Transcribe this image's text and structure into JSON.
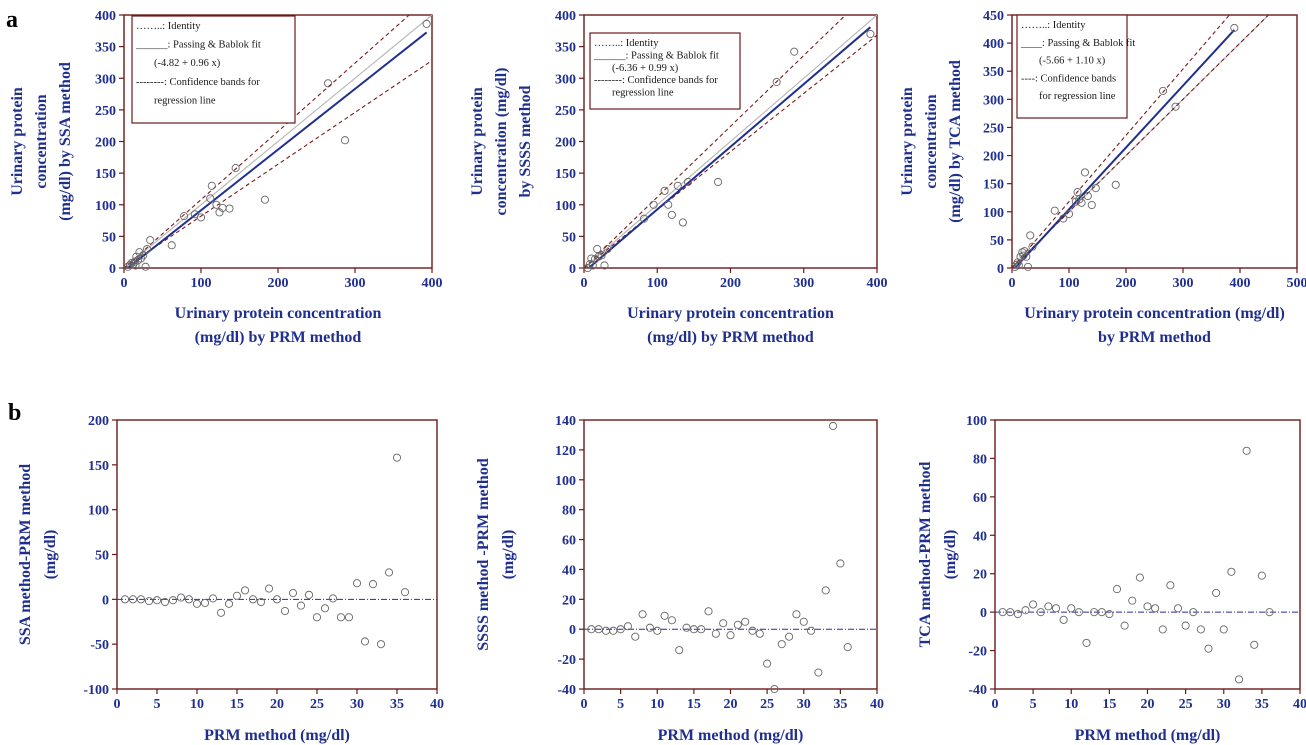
{
  "figure": {
    "panel_a_label": "a",
    "panel_b_label": "b"
  },
  "colors": {
    "axis_frame": "#6b1a1a",
    "tick_text": "#1f2f8f",
    "fit_line": "#1f2f8f",
    "identity_line": "#b5b5b5",
    "confidence_band": "#7a1a1a",
    "markers": "#666666",
    "zero_line": "#2a2a9a"
  },
  "chart_data": [
    {
      "id": "a1",
      "type": "scatter",
      "ylabel_lines": [
        "Urinary protein",
        "concentration",
        "(mg/dl) by SSA method"
      ],
      "xlabel_lines": [
        "Urinary protein concentration",
        "(mg/dl) by PRM method"
      ],
      "xlim": [
        0,
        400
      ],
      "ylim": [
        0,
        400
      ],
      "xticks": [
        "0",
        "100",
        "200",
        "300",
        "400"
      ],
      "yticks": [
        "0",
        "50",
        "100",
        "150",
        "200",
        "250",
        "300",
        "350",
        "400"
      ],
      "legend": [
        "……..: Identity",
        "______: Passing & Bablok fit",
        "(-4.82 + 0.96 x)",
        "--------: Confidence bands for",
        "regression line"
      ],
      "legend_position": "top-left",
      "fit": {
        "intercept": -4.82,
        "slope": 0.96
      },
      "identity": true,
      "bands": {
        "lower_slope": 0.82,
        "upper_slope": 1.08
      },
      "points": [
        [
          5,
          2
        ],
        [
          8,
          5
        ],
        [
          10,
          8
        ],
        [
          12,
          6
        ],
        [
          14,
          10
        ],
        [
          15,
          4
        ],
        [
          16,
          18
        ],
        [
          18,
          12
        ],
        [
          20,
          25
        ],
        [
          22,
          15
        ],
        [
          25,
          20
        ],
        [
          28,
          2
        ],
        [
          30,
          30
        ],
        [
          34,
          44
        ],
        [
          62,
          36
        ],
        [
          78,
          82
        ],
        [
          92,
          85
        ],
        [
          100,
          80
        ],
        [
          112,
          110
        ],
        [
          114,
          130
        ],
        [
          120,
          100
        ],
        [
          124,
          88
        ],
        [
          128,
          95
        ],
        [
          137,
          94
        ],
        [
          145,
          158
        ],
        [
          183,
          108
        ],
        [
          265,
          292
        ],
        [
          287,
          202
        ],
        [
          393,
          386
        ]
      ]
    },
    {
      "id": "a2",
      "type": "scatter",
      "ylabel_lines": [
        "Urinary protein",
        "concentration (mg/dl)",
        "by SSSS method"
      ],
      "xlabel_lines": [
        "Urinary protein concentration",
        "(mg/dl)  by PRM method"
      ],
      "xlim": [
        0,
        400
      ],
      "ylim": [
        0,
        400
      ],
      "xticks": [
        "0",
        "100",
        "200",
        "300",
        "400"
      ],
      "yticks": [
        "0",
        "50",
        "100",
        "150",
        "200",
        "250",
        "300",
        "350",
        "400"
      ],
      "legend": [
        "……..: Identity",
        "______: Passing & Bablok fit",
        "(-6.36 + 0.99 x)",
        "--------: Confidence bands for",
        "regression line"
      ],
      "legend_position": "top-left",
      "fit": {
        "intercept": -6.36,
        "slope": 0.99
      },
      "identity": true,
      "bands": {
        "lower_slope": 0.92,
        "upper_slope": 1.12
      },
      "points": [
        [
          5,
          0
        ],
        [
          8,
          6
        ],
        [
          10,
          15
        ],
        [
          12,
          4
        ],
        [
          15,
          14
        ],
        [
          18,
          30
        ],
        [
          20,
          18
        ],
        [
          24,
          20
        ],
        [
          28,
          4
        ],
        [
          32,
          30
        ],
        [
          82,
          78
        ],
        [
          95,
          100
        ],
        [
          110,
          122
        ],
        [
          115,
          100
        ],
        [
          120,
          84
        ],
        [
          128,
          130
        ],
        [
          135,
          72
        ],
        [
          142,
          136
        ],
        [
          183,
          136
        ],
        [
          263,
          294
        ],
        [
          287,
          342
        ],
        [
          391,
          370
        ]
      ]
    },
    {
      "id": "a3",
      "type": "scatter",
      "ylabel_lines": [
        "Urinary protein",
        "concentration",
        "(mg/dl) by TCA method"
      ],
      "xlabel_lines": [
        "Urinary protein concentration (mg/dl)",
        "by PRM method"
      ],
      "xlim": [
        0,
        500
      ],
      "ylim": [
        0,
        450
      ],
      "xticks": [
        "0",
        "100",
        "200",
        "300",
        "400",
        "500"
      ],
      "yticks": [
        "0",
        "50",
        "100",
        "150",
        "200",
        "250",
        "300",
        "350",
        "400",
        "450"
      ],
      "legend": [
        "……..: Identity",
        "____: Passing & Bablok fit",
        "(-5.66 + 1.10 x)",
        "----: Confidence bands",
        "for regression line"
      ],
      "legend_position": "top-left",
      "fit": {
        "intercept": -5.66,
        "slope": 1.1
      },
      "identity": true,
      "bands": {
        "lower_slope": 1.0,
        "upper_slope": 1.18
      },
      "points": [
        [
          5,
          2
        ],
        [
          8,
          6
        ],
        [
          10,
          10
        ],
        [
          12,
          5
        ],
        [
          15,
          20
        ],
        [
          18,
          28
        ],
        [
          20,
          22
        ],
        [
          22,
          30
        ],
        [
          25,
          20
        ],
        [
          28,
          2
        ],
        [
          32,
          58
        ],
        [
          36,
          38
        ],
        [
          75,
          102
        ],
        [
          90,
          88
        ],
        [
          100,
          96
        ],
        [
          112,
          118
        ],
        [
          115,
          135
        ],
        [
          118,
          122
        ],
        [
          122,
          116
        ],
        [
          128,
          170
        ],
        [
          133,
          128
        ],
        [
          140,
          112
        ],
        [
          147,
          142
        ],
        [
          182,
          148
        ],
        [
          265,
          315
        ],
        [
          287,
          287
        ],
        [
          390,
          427
        ]
      ]
    },
    {
      "id": "b1",
      "type": "scatter",
      "ylabel_lines": [
        "SSA method-PRM method",
        "(mg/dl)"
      ],
      "xlabel_lines": [
        "PRM method (mg/dl)"
      ],
      "xlim": [
        0,
        40
      ],
      "ylim": [
        -100,
        200
      ],
      "xticks": [
        "0",
        "5",
        "10",
        "15",
        "20",
        "25",
        "30",
        "35",
        "40"
      ],
      "yticks": [
        "-100",
        "-50",
        "0",
        "50",
        "100",
        "150",
        "200"
      ],
      "zero_line": true,
      "points": [
        [
          1,
          0
        ],
        [
          2,
          0
        ],
        [
          3,
          0
        ],
        [
          4,
          -2
        ],
        [
          5,
          -1
        ],
        [
          6,
          -3
        ],
        [
          7,
          -1
        ],
        [
          8,
          2
        ],
        [
          9,
          0
        ],
        [
          10,
          -5
        ],
        [
          11,
          -4
        ],
        [
          12,
          1
        ],
        [
          13,
          -15
        ],
        [
          14,
          -5
        ],
        [
          15,
          4
        ],
        [
          16,
          10
        ],
        [
          17,
          0
        ],
        [
          18,
          -3
        ],
        [
          19,
          12
        ],
        [
          20,
          0
        ],
        [
          21,
          -13
        ],
        [
          22,
          7
        ],
        [
          23,
          -7
        ],
        [
          24,
          5
        ],
        [
          25,
          -20
        ],
        [
          26,
          -10
        ],
        [
          27,
          1
        ],
        [
          28,
          -20
        ],
        [
          29,
          -20
        ],
        [
          30,
          18
        ],
        [
          31,
          -47
        ],
        [
          32,
          17
        ],
        [
          33,
          -50
        ],
        [
          34,
          30
        ],
        [
          35,
          158
        ],
        [
          36,
          8
        ]
      ]
    },
    {
      "id": "b2",
      "type": "scatter",
      "ylabel_lines": [
        "SSSS method -PRM method",
        "(mg/dl)"
      ],
      "xlabel_lines": [
        "PRM method (mg/dl)"
      ],
      "xlim": [
        0,
        40
      ],
      "ylim": [
        -40,
        140
      ],
      "xticks": [
        "0",
        "5",
        "10",
        "15",
        "20",
        "25",
        "30",
        "35",
        "40"
      ],
      "yticks": [
        "-40",
        "-20",
        "0",
        "20",
        "40",
        "60",
        "80",
        "100",
        "120",
        "140"
      ],
      "zero_line": true,
      "points": [
        [
          1,
          0
        ],
        [
          2,
          0
        ],
        [
          3,
          -1
        ],
        [
          4,
          -1
        ],
        [
          5,
          0
        ],
        [
          6,
          2
        ],
        [
          7,
          -5
        ],
        [
          8,
          10
        ],
        [
          9,
          1
        ],
        [
          10,
          -1
        ],
        [
          11,
          9
        ],
        [
          12,
          6
        ],
        [
          13,
          -14
        ],
        [
          14,
          1
        ],
        [
          15,
          0
        ],
        [
          16,
          0
        ],
        [
          17,
          12
        ],
        [
          18,
          -3
        ],
        [
          19,
          4
        ],
        [
          20,
          -4
        ],
        [
          21,
          3
        ],
        [
          22,
          5
        ],
        [
          23,
          -1
        ],
        [
          24,
          -3
        ],
        [
          25,
          -23
        ],
        [
          26,
          -40
        ],
        [
          27,
          -10
        ],
        [
          28,
          -5
        ],
        [
          29,
          10
        ],
        [
          30,
          5
        ],
        [
          31,
          -1
        ],
        [
          32,
          -29
        ],
        [
          33,
          26
        ],
        [
          34,
          136
        ],
        [
          35,
          44
        ],
        [
          36,
          -12
        ]
      ]
    },
    {
      "id": "b3",
      "type": "scatter",
      "ylabel_lines": [
        "TCA method-PRM method",
        "(mg/dl)"
      ],
      "xlabel_lines": [
        "PRM method (mg/dl)"
      ],
      "xlim": [
        0,
        40
      ],
      "ylim": [
        -40,
        100
      ],
      "xticks": [
        "0",
        "5",
        "10",
        "15",
        "20",
        "25",
        "30",
        "35",
        "40"
      ],
      "yticks": [
        "-40",
        "-20",
        "0",
        "20",
        "40",
        "60",
        "80",
        "100"
      ],
      "zero_line": true,
      "points": [
        [
          1,
          0
        ],
        [
          2,
          0
        ],
        [
          3,
          -1
        ],
        [
          4,
          1
        ],
        [
          5,
          4
        ],
        [
          6,
          0
        ],
        [
          7,
          3
        ],
        [
          8,
          2
        ],
        [
          9,
          -4
        ],
        [
          10,
          2
        ],
        [
          11,
          0
        ],
        [
          12,
          -16
        ],
        [
          13,
          0
        ],
        [
          14,
          0
        ],
        [
          15,
          -1
        ],
        [
          16,
          12
        ],
        [
          17,
          -7
        ],
        [
          18,
          6
        ],
        [
          19,
          18
        ],
        [
          20,
          3
        ],
        [
          21,
          2
        ],
        [
          22,
          -9
        ],
        [
          23,
          14
        ],
        [
          24,
          2
        ],
        [
          25,
          -7
        ],
        [
          26,
          0
        ],
        [
          27,
          -9
        ],
        [
          28,
          -19
        ],
        [
          29,
          10
        ],
        [
          30,
          -9
        ],
        [
          31,
          21
        ],
        [
          32,
          -35
        ],
        [
          33,
          84
        ],
        [
          34,
          -17
        ],
        [
          35,
          19
        ],
        [
          36,
          0
        ]
      ]
    }
  ]
}
